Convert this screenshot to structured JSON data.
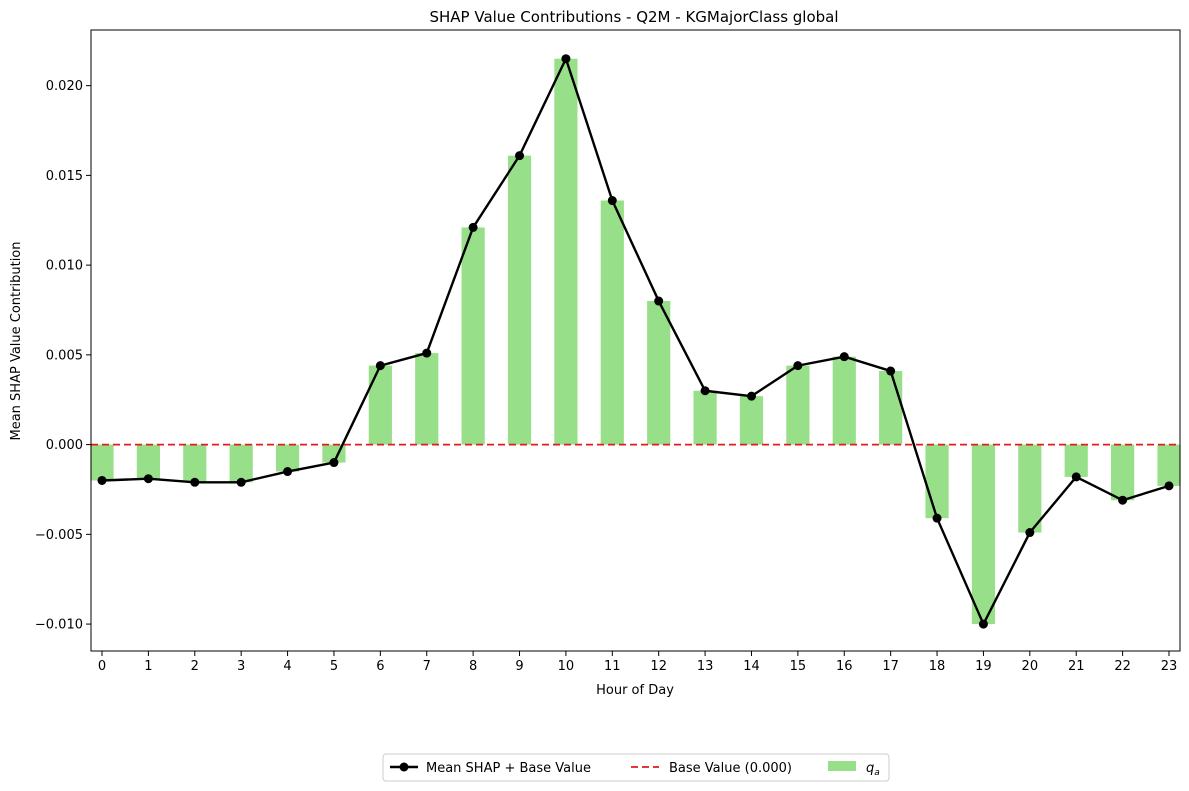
{
  "chart_data": {
    "type": "bar",
    "title": "SHAP Value Contributions - Q2M - KGMajorClass global",
    "xlabel": "Hour of Day",
    "ylabel": "Mean SHAP Value Contribution",
    "categories": [
      "0",
      "1",
      "2",
      "3",
      "4",
      "5",
      "6",
      "7",
      "8",
      "9",
      "10",
      "11",
      "12",
      "13",
      "14",
      "15",
      "16",
      "17",
      "18",
      "19",
      "20",
      "21",
      "22",
      "23"
    ],
    "ylim": [
      -0.0115,
      0.0231
    ],
    "yticks": [
      -0.01,
      -0.005,
      0.0,
      0.005,
      0.01,
      0.015,
      0.02
    ],
    "ytick_labels": [
      "−0.010",
      "−0.005",
      "0.000",
      "0.005",
      "0.010",
      "0.015",
      "0.020"
    ],
    "series": [
      {
        "name": "q_a",
        "kind": "bar",
        "color": "#98df8a",
        "values": [
          -0.002,
          -0.0019,
          -0.0021,
          -0.0021,
          -0.0015,
          -0.001,
          0.0044,
          0.0051,
          0.0121,
          0.0161,
          0.0215,
          0.0136,
          0.008,
          0.003,
          0.0027,
          0.0044,
          0.0049,
          0.0041,
          -0.0041,
          -0.01,
          -0.0049,
          -0.0018,
          -0.0031,
          -0.0023
        ]
      },
      {
        "name": "Mean SHAP + Base Value",
        "kind": "line",
        "color": "#000000",
        "values": [
          -0.002,
          -0.0019,
          -0.0021,
          -0.0021,
          -0.0015,
          -0.001,
          0.0044,
          0.0051,
          0.0121,
          0.0161,
          0.0215,
          0.0136,
          0.008,
          0.003,
          0.0027,
          0.0044,
          0.0049,
          0.0041,
          -0.0041,
          -0.01,
          -0.0049,
          -0.0018,
          -0.0031,
          -0.0023
        ]
      },
      {
        "name": "Base Value (0.000)",
        "kind": "hline",
        "color": "#e41a1c",
        "value": 0.0
      }
    ],
    "legend": {
      "placement": "bottom-center",
      "entries": [
        {
          "label": "Mean SHAP + Base Value",
          "style": "line-marker",
          "color": "#000000"
        },
        {
          "label": "Base Value (0.000)",
          "style": "dashed",
          "color": "#e41a1c"
        },
        {
          "label": "q",
          "subscript": "a",
          "style": "patch",
          "color": "#98df8a"
        }
      ]
    },
    "grid": false
  }
}
